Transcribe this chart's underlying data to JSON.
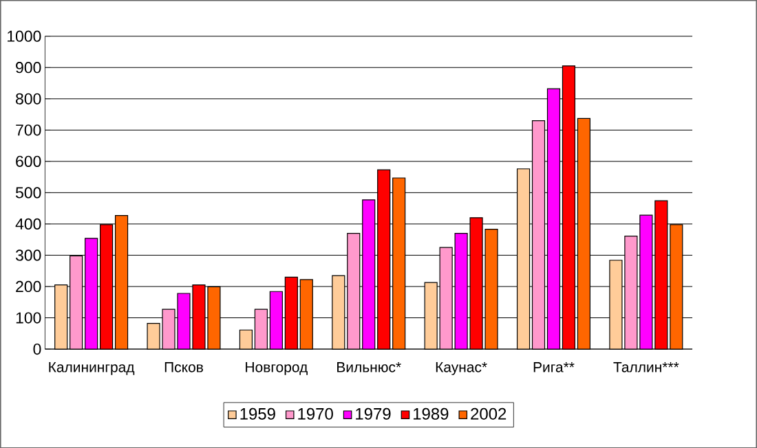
{
  "chart_data": {
    "type": "bar",
    "categories": [
      "Калининград",
      "Псков",
      "Новгород",
      "Вильнюс*",
      "Каунас*",
      "Рига**",
      "Таллин***"
    ],
    "series": [
      {
        "name": "1959",
        "color": "#ffcc99",
        "values": [
          205,
          82,
          61,
          235,
          213,
          576,
          284
        ]
      },
      {
        "name": "1970",
        "color": "#ff99cc",
        "values": [
          298,
          127,
          127,
          370,
          325,
          730,
          361
        ]
      },
      {
        "name": "1979",
        "color": "#ff00ff",
        "values": [
          354,
          178,
          184,
          477,
          370,
          832,
          428
        ]
      },
      {
        "name": "1989",
        "color": "#ff0000",
        "values": [
          398,
          205,
          230,
          573,
          420,
          905,
          474
        ]
      },
      {
        "name": "2002",
        "color": "#ff6600",
        "values": [
          427,
          199,
          222,
          547,
          383,
          737,
          398
        ]
      }
    ],
    "ylim": [
      0,
      1000
    ],
    "yticks": [
      0,
      100,
      200,
      300,
      400,
      500,
      600,
      700,
      800,
      900,
      1000
    ],
    "grid": "y",
    "legend": "bottom"
  }
}
